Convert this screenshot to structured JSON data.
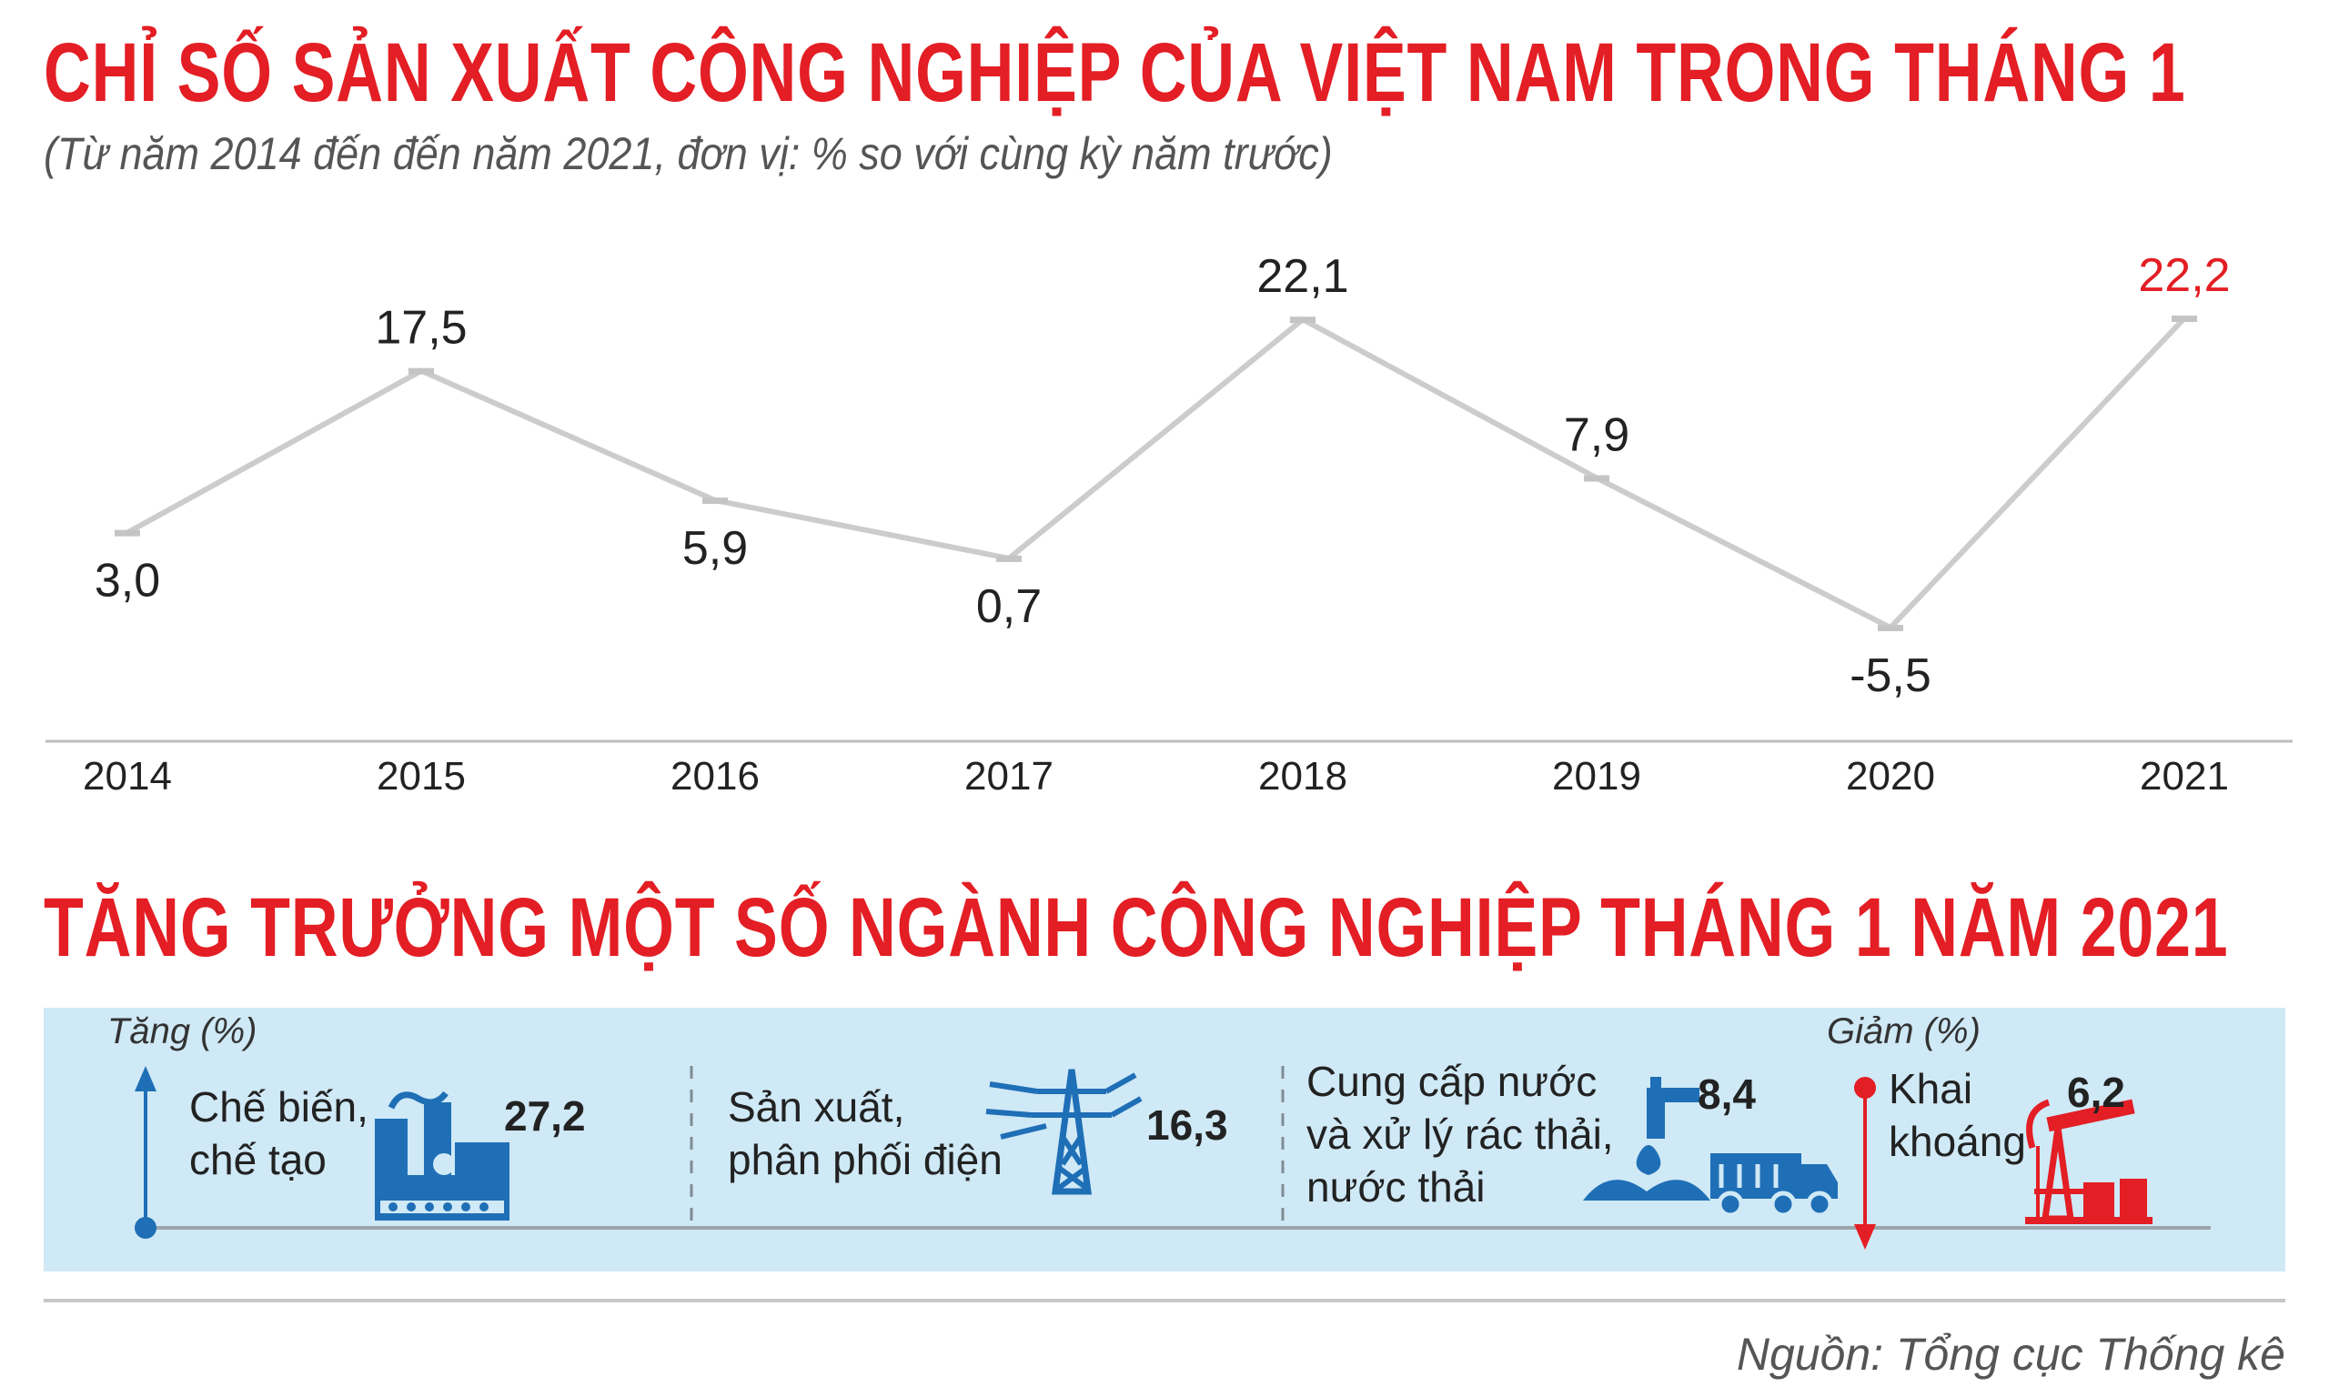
{
  "title": "CHỈ SỐ SẢN XUẤT CÔNG NGHIỆP CỦA VIỆT NAM TRONG THÁNG 1",
  "subtitle": "(Từ năm 2014 đến đến năm 2021, đơn vị: % so với cùng kỳ năm trước)",
  "chart_data": {
    "type": "line",
    "title": "CHỈ SỐ SẢN XUẤT CÔNG NGHIỆP CỦA VIỆT NAM TRONG THÁNG 1",
    "categories": [
      "2014",
      "2015",
      "2016",
      "2017",
      "2018",
      "2019",
      "2020",
      "2021"
    ],
    "values": [
      3.0,
      17.5,
      5.9,
      0.7,
      22.1,
      7.9,
      -5.5,
      22.2
    ],
    "labels": [
      "3,0",
      "17,5",
      "5,9",
      "0,7",
      "22,1",
      "7,9",
      "-5,5",
      "22,2"
    ],
    "highlight_index": 7,
    "line_color": "#cccccc",
    "highlight_color": "#e31e24",
    "grid": false,
    "xlabel": "",
    "ylabel": ""
  },
  "section2": {
    "title": "TĂNG TRƯỞNG MỘT SỐ NGÀNH CÔNG NGHIỆP THÁNG 1 NĂM 2021",
    "increase_label": "Tăng (%)",
    "decrease_label": "Giảm (%)",
    "items": [
      {
        "label_lines": [
          "Chế biến,",
          "chế tạo"
        ],
        "value": "27,2",
        "direction": "increase",
        "icon": "factory-icon"
      },
      {
        "label_lines": [
          "Sản xuất,",
          "phân phối điện"
        ],
        "value": "16,3",
        "direction": "increase",
        "icon": "power-tower-icon"
      },
      {
        "label_lines": [
          "Cung cấp nước",
          "và xử lý rác thải,",
          "nước thải"
        ],
        "value": "8,4",
        "direction": "increase",
        "icon": "water-tap-truck-icon"
      },
      {
        "label_lines": [
          "Khai",
          "khoáng"
        ],
        "value": "6,2",
        "direction": "decrease",
        "icon": "oil-pump-icon"
      }
    ],
    "colors": {
      "panel": "#cfe9f6",
      "icon_blue": "#1f6fb6",
      "decrease_red": "#e31e24",
      "arrow_blue": "#1f6fb6"
    }
  },
  "source": "Nguồn: Tổng cục Thống kê"
}
